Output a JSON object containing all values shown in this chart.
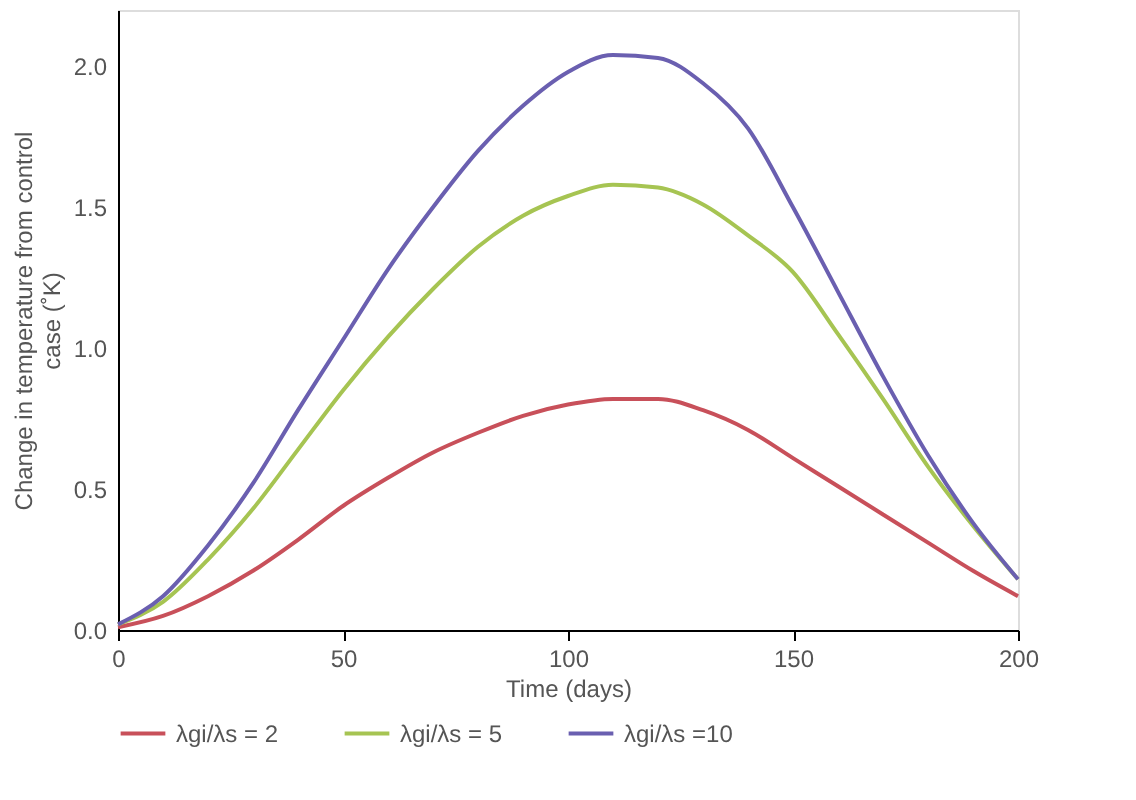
{
  "chart_data": {
    "type": "line",
    "xlabel": "Time (days)",
    "ylabel": "Change in temperature from control case (˚K)",
    "x": [
      0,
      10,
      20,
      30,
      40,
      50,
      60,
      70,
      80,
      90,
      100,
      110,
      120,
      130,
      140,
      150,
      160,
      170,
      180,
      190,
      200
    ],
    "series": [
      {
        "name": "λgi/λs = 2",
        "color": "#c8505a",
        "values": [
          0.01,
          0.05,
          0.12,
          0.21,
          0.32,
          0.44,
          0.54,
          0.63,
          0.7,
          0.76,
          0.8,
          0.82,
          0.82,
          0.78,
          0.71,
          0.61,
          0.51,
          0.41,
          0.31,
          0.21,
          0.12
        ]
      },
      {
        "name": "λgi/λs = 5",
        "color": "#a6c452",
        "values": [
          0.02,
          0.1,
          0.25,
          0.43,
          0.64,
          0.85,
          1.04,
          1.21,
          1.36,
          1.47,
          1.54,
          1.58,
          1.57,
          1.51,
          1.4,
          1.27,
          1.05,
          0.82,
          0.58,
          0.37,
          0.18
        ]
      },
      {
        "name": "λgi/λs =10",
        "color": "#6a5fb0",
        "values": [
          0.02,
          0.12,
          0.3,
          0.52,
          0.78,
          1.03,
          1.28,
          1.5,
          1.7,
          1.86,
          1.98,
          2.04,
          2.03,
          1.94,
          1.78,
          1.5,
          1.2,
          0.9,
          0.62,
          0.38,
          0.18
        ]
      }
    ],
    "xlim": [
      0,
      200
    ],
    "xticks": [
      0,
      50,
      100,
      150,
      200
    ],
    "ylim": [
      0,
      2.2
    ],
    "yticks": [
      {
        "value": 0,
        "label": "0.0"
      },
      {
        "value": 0.5,
        "label": "0.5"
      },
      {
        "value": 1,
        "label": "1.0"
      },
      {
        "value": 1.5,
        "label": "1.5"
      },
      {
        "value": 2,
        "label": "2.0"
      }
    ],
    "grid": false,
    "legend": "bottom",
    "marker": "none",
    "line_style": "solid"
  }
}
